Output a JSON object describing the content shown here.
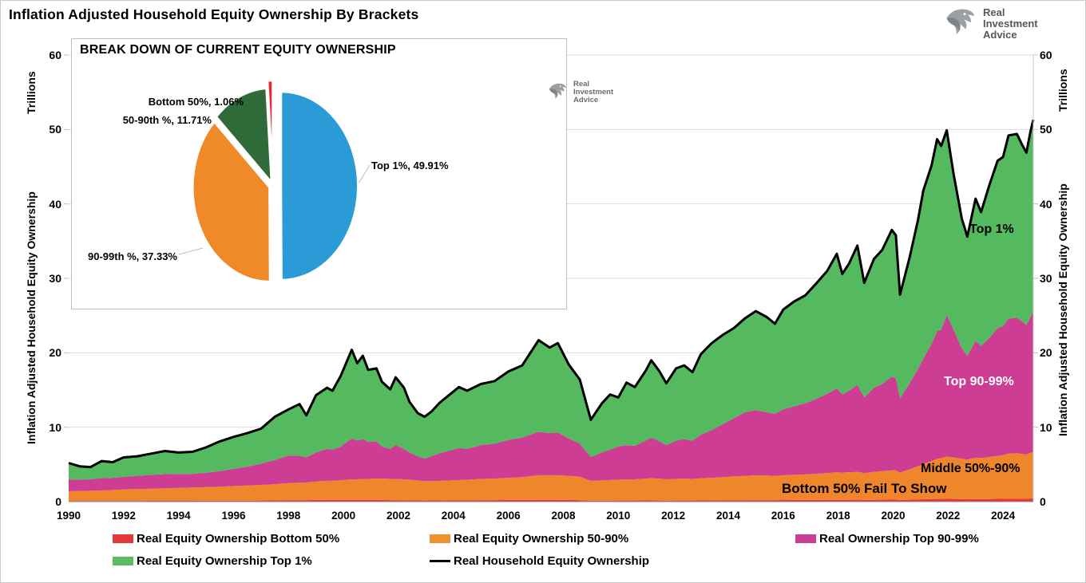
{
  "title": "Inflation Adjusted Household Equity Ownership By Brackets",
  "logo": {
    "lines": [
      "Real",
      "Investment",
      "Advice"
    ]
  },
  "axes": {
    "left": {
      "unit_label": "Trillions",
      "axis_title": "Inflation Adjusted Household Equity Ownership"
    },
    "right": {
      "unit_label": "Trillions",
      "axis_title": "Inflation Adjusted Household Equity Ownership"
    },
    "y_ticks": [
      "0",
      "10",
      "20",
      "30",
      "40",
      "50",
      "60"
    ],
    "x_ticks": [
      "1990",
      "1992",
      "1994",
      "1996",
      "1998",
      "2000",
      "2002",
      "2004",
      "2006",
      "2008",
      "2010",
      "2012",
      "2014",
      "2016",
      "2018",
      "2020",
      "2022",
      "2024"
    ]
  },
  "annotations": {
    "top1": "Top 1%",
    "top9099": "Top 90-99%",
    "middle": "Middle 50%-90%",
    "bottom_fail": "Bottom 50% Fail To Show"
  },
  "legend": {
    "items": [
      {
        "label": "Real Equity Ownership Bottom 50%",
        "color": "#e23a3a",
        "type": "box"
      },
      {
        "label": "Real Equity Ownership 50-90%",
        "color": "#f0912f",
        "type": "box"
      },
      {
        "label": "Real Ownership Top 90-99%",
        "color": "#cc3d96",
        "type": "box"
      },
      {
        "label": "Real Equity Ownership Top 1%",
        "color": "#5cbc63",
        "type": "box"
      },
      {
        "label": "Real Household Equity Ownership",
        "color": "#000000",
        "type": "line"
      }
    ]
  },
  "inset": {
    "title": "BREAK DOWN OF CURRENT EQUITY OWNERSHIP"
  },
  "chart_data": [
    {
      "type": "area",
      "title": "Inflation Adjusted Household Equity Ownership By Brackets",
      "ylabel": "Inflation Adjusted Household Equity Ownership (Trillions)",
      "ylim": [
        0,
        60
      ],
      "xlim": [
        1990,
        2025.1
      ],
      "grid": "horizontal",
      "y_grid": [
        10,
        20,
        30,
        40,
        50,
        60
      ],
      "stack_note": "columns are [year, cum_bottom50, cum_50_90, cum_90_99, total]; stacked bands are drawn between successive cumulative columns; total is the black line",
      "series": [
        {
          "name": "Real Equity Ownership Bottom 50%",
          "color": "#ed3237"
        },
        {
          "name": "Real Equity Ownership 50-90%",
          "color": "#f0862c"
        },
        {
          "name": "Real Ownership Top 90-99%",
          "color": "#cc3d93"
        },
        {
          "name": "Real Equity Ownership Top 1%",
          "color": "#55b95f"
        },
        {
          "name": "Real Household Equity Ownership",
          "color": "#000000",
          "role": "total-line"
        }
      ],
      "points": [
        [
          1990.0,
          0.1,
          1.4,
          3.0,
          5.2
        ],
        [
          1990.4,
          0.1,
          1.42,
          2.95,
          4.75
        ],
        [
          1990.8,
          0.1,
          1.46,
          3.02,
          4.65
        ],
        [
          1991.2,
          0.1,
          1.5,
          3.15,
          5.45
        ],
        [
          1991.6,
          0.1,
          1.56,
          3.2,
          5.3
        ],
        [
          1992.0,
          0.1,
          1.65,
          3.35,
          5.95
        ],
        [
          1992.5,
          0.1,
          1.7,
          3.45,
          6.1
        ],
        [
          1993.0,
          0.11,
          1.75,
          3.6,
          6.45
        ],
        [
          1993.5,
          0.11,
          1.8,
          3.7,
          6.8
        ],
        [
          1994.0,
          0.11,
          1.85,
          3.72,
          6.6
        ],
        [
          1994.5,
          0.11,
          1.9,
          3.72,
          6.7
        ],
        [
          1995.0,
          0.12,
          1.95,
          3.9,
          7.3
        ],
        [
          1995.5,
          0.12,
          2.0,
          4.1,
          8.1
        ],
        [
          1996.0,
          0.13,
          2.1,
          4.4,
          8.7
        ],
        [
          1996.5,
          0.14,
          2.16,
          4.7,
          9.2
        ],
        [
          1997.0,
          0.15,
          2.25,
          5.1,
          9.8
        ],
        [
          1997.5,
          0.17,
          2.35,
          5.6,
          11.4
        ],
        [
          1998.0,
          0.2,
          2.5,
          6.2,
          12.4
        ],
        [
          1998.4,
          0.2,
          2.55,
          6.15,
          13.1
        ],
        [
          1998.65,
          0.2,
          2.58,
          5.95,
          11.6
        ],
        [
          1999.0,
          0.22,
          2.7,
          6.6,
          14.3
        ],
        [
          1999.4,
          0.24,
          2.8,
          7.1,
          15.3
        ],
        [
          1999.6,
          0.25,
          2.82,
          7.0,
          14.9
        ],
        [
          1999.9,
          0.25,
          2.88,
          7.4,
          16.9
        ],
        [
          2000.3,
          0.25,
          3.0,
          8.5,
          20.4
        ],
        [
          2000.5,
          0.25,
          3.0,
          8.2,
          18.6
        ],
        [
          2000.7,
          0.25,
          3.05,
          8.4,
          19.6
        ],
        [
          2000.9,
          0.24,
          3.05,
          8.0,
          17.7
        ],
        [
          2001.2,
          0.24,
          3.1,
          8.1,
          17.9
        ],
        [
          2001.4,
          0.22,
          3.1,
          7.4,
          16.1
        ],
        [
          2001.7,
          0.2,
          3.05,
          7.1,
          15.1
        ],
        [
          2001.9,
          0.2,
          3.05,
          7.6,
          16.7
        ],
        [
          2002.2,
          0.18,
          3.0,
          7.1,
          15.3
        ],
        [
          2002.4,
          0.17,
          2.95,
          6.6,
          13.4
        ],
        [
          2002.7,
          0.16,
          2.85,
          6.1,
          11.9
        ],
        [
          2002.95,
          0.15,
          2.75,
          5.8,
          11.4
        ],
        [
          2003.2,
          0.16,
          2.75,
          6.1,
          12.1
        ],
        [
          2003.5,
          0.17,
          2.8,
          6.5,
          13.3
        ],
        [
          2003.9,
          0.18,
          2.85,
          6.9,
          14.5
        ],
        [
          2004.2,
          0.18,
          2.9,
          7.2,
          15.4
        ],
        [
          2004.5,
          0.18,
          2.95,
          7.1,
          14.9
        ],
        [
          2005.0,
          0.2,
          3.05,
          7.6,
          15.8
        ],
        [
          2005.5,
          0.2,
          3.1,
          7.8,
          16.2
        ],
        [
          2006.0,
          0.22,
          3.2,
          8.3,
          17.5
        ],
        [
          2006.5,
          0.23,
          3.3,
          8.6,
          18.3
        ],
        [
          2007.1,
          0.25,
          3.55,
          9.4,
          21.7
        ],
        [
          2007.5,
          0.25,
          3.55,
          9.2,
          20.7
        ],
        [
          2007.8,
          0.25,
          3.55,
          9.3,
          21.3
        ],
        [
          2008.2,
          0.22,
          3.45,
          8.5,
          18.4
        ],
        [
          2008.6,
          0.2,
          3.35,
          7.8,
          16.4
        ],
        [
          2009.0,
          0.12,
          2.8,
          6.0,
          11.0
        ],
        [
          2009.4,
          0.13,
          2.85,
          6.6,
          13.2
        ],
        [
          2009.7,
          0.14,
          2.9,
          7.0,
          14.4
        ],
        [
          2010.0,
          0.15,
          2.95,
          7.4,
          14.0
        ],
        [
          2010.3,
          0.15,
          3.0,
          7.6,
          16.0
        ],
        [
          2010.6,
          0.15,
          3.0,
          7.5,
          15.4
        ],
        [
          2011.0,
          0.16,
          3.1,
          8.2,
          17.6
        ],
        [
          2011.2,
          0.16,
          3.15,
          8.6,
          19.0
        ],
        [
          2011.5,
          0.15,
          3.1,
          8.1,
          17.5
        ],
        [
          2011.75,
          0.14,
          3.0,
          7.6,
          15.9
        ],
        [
          2012.1,
          0.15,
          3.05,
          8.2,
          17.9
        ],
        [
          2012.4,
          0.15,
          3.1,
          8.4,
          18.3
        ],
        [
          2012.7,
          0.15,
          3.05,
          8.2,
          17.4
        ],
        [
          2013.0,
          0.16,
          3.15,
          9.0,
          19.8
        ],
        [
          2013.4,
          0.17,
          3.2,
          9.6,
          21.3
        ],
        [
          2013.8,
          0.18,
          3.3,
          10.4,
          22.4
        ],
        [
          2014.2,
          0.19,
          3.4,
          11.2,
          23.3
        ],
        [
          2014.6,
          0.2,
          3.45,
          12.0,
          24.6
        ],
        [
          2015.0,
          0.2,
          3.55,
          12.3,
          25.6
        ],
        [
          2015.4,
          0.2,
          3.5,
          12.0,
          24.8
        ],
        [
          2015.7,
          0.2,
          3.45,
          11.8,
          23.9
        ],
        [
          2016.0,
          0.21,
          3.55,
          12.4,
          25.8
        ],
        [
          2016.4,
          0.22,
          3.6,
          12.8,
          26.9
        ],
        [
          2016.8,
          0.22,
          3.65,
          13.2,
          27.7
        ],
        [
          2017.2,
          0.23,
          3.75,
          13.8,
          29.3
        ],
        [
          2017.6,
          0.24,
          3.85,
          14.5,
          31.0
        ],
        [
          2017.95,
          0.25,
          3.95,
          15.2,
          33.3
        ],
        [
          2018.15,
          0.24,
          3.9,
          14.4,
          30.6
        ],
        [
          2018.4,
          0.25,
          3.95,
          14.9,
          32.0
        ],
        [
          2018.7,
          0.26,
          4.0,
          15.7,
          34.4
        ],
        [
          2018.95,
          0.23,
          3.85,
          14.0,
          29.4
        ],
        [
          2019.3,
          0.25,
          4.0,
          15.3,
          32.6
        ],
        [
          2019.6,
          0.26,
          4.1,
          15.8,
          33.8
        ],
        [
          2019.95,
          0.27,
          4.2,
          16.8,
          36.5
        ],
        [
          2020.1,
          0.27,
          4.2,
          16.6,
          35.8
        ],
        [
          2020.25,
          0.22,
          3.9,
          13.9,
          27.8
        ],
        [
          2020.6,
          0.26,
          4.35,
          15.9,
          32.8
        ],
        [
          2020.9,
          0.3,
          4.75,
          17.8,
          37.8
        ],
        [
          2021.1,
          0.32,
          5.05,
          19.2,
          41.8
        ],
        [
          2021.4,
          0.34,
          5.45,
          21.2,
          45.2
        ],
        [
          2021.6,
          0.36,
          5.75,
          22.9,
          48.7
        ],
        [
          2021.75,
          0.36,
          5.85,
          23.1,
          47.8
        ],
        [
          2021.95,
          0.38,
          6.05,
          25.1,
          49.9
        ],
        [
          2022.2,
          0.36,
          5.95,
          23.1,
          44.0
        ],
        [
          2022.5,
          0.33,
          5.75,
          20.6,
          38.0
        ],
        [
          2022.7,
          0.32,
          5.65,
          19.6,
          35.6
        ],
        [
          2023.0,
          0.34,
          5.9,
          21.6,
          40.7
        ],
        [
          2023.2,
          0.33,
          5.85,
          20.9,
          38.9
        ],
        [
          2023.5,
          0.35,
          6.0,
          22.0,
          42.5
        ],
        [
          2023.8,
          0.37,
          6.15,
          23.3,
          45.8
        ],
        [
          2024.0,
          0.38,
          6.25,
          23.6,
          46.3
        ],
        [
          2024.2,
          0.4,
          6.45,
          24.6,
          49.2
        ],
        [
          2024.5,
          0.4,
          6.5,
          24.7,
          49.4
        ],
        [
          2024.7,
          0.39,
          6.4,
          24.2,
          47.9
        ],
        [
          2024.85,
          0.39,
          6.35,
          23.7,
          46.9
        ],
        [
          2025.0,
          0.42,
          6.55,
          24.8,
          49.8
        ],
        [
          2025.1,
          0.45,
          6.65,
          25.6,
          51.3
        ]
      ]
    },
    {
      "type": "pie",
      "title": "BREAK DOWN OF CURRENT EQUITY OWNERSHIP",
      "legend_position": "data-labels",
      "slices": [
        {
          "label": "Top 1%",
          "value": 49.91,
          "color": "#2b9bd7",
          "label_text": "Top 1%, 49.91%"
        },
        {
          "label": "90-99th %",
          "value": 37.33,
          "color": "#f08a28",
          "label_text": "90-99th %, 37.33%"
        },
        {
          "label": "50-90th %",
          "value": 11.71,
          "color": "#2e6b38",
          "label_text": "50-90th %, 11.71%"
        },
        {
          "label": "Bottom 50%",
          "value": 1.06,
          "color": "#e8282e",
          "label_text": "Bottom 50%, 1.06%"
        }
      ]
    }
  ]
}
